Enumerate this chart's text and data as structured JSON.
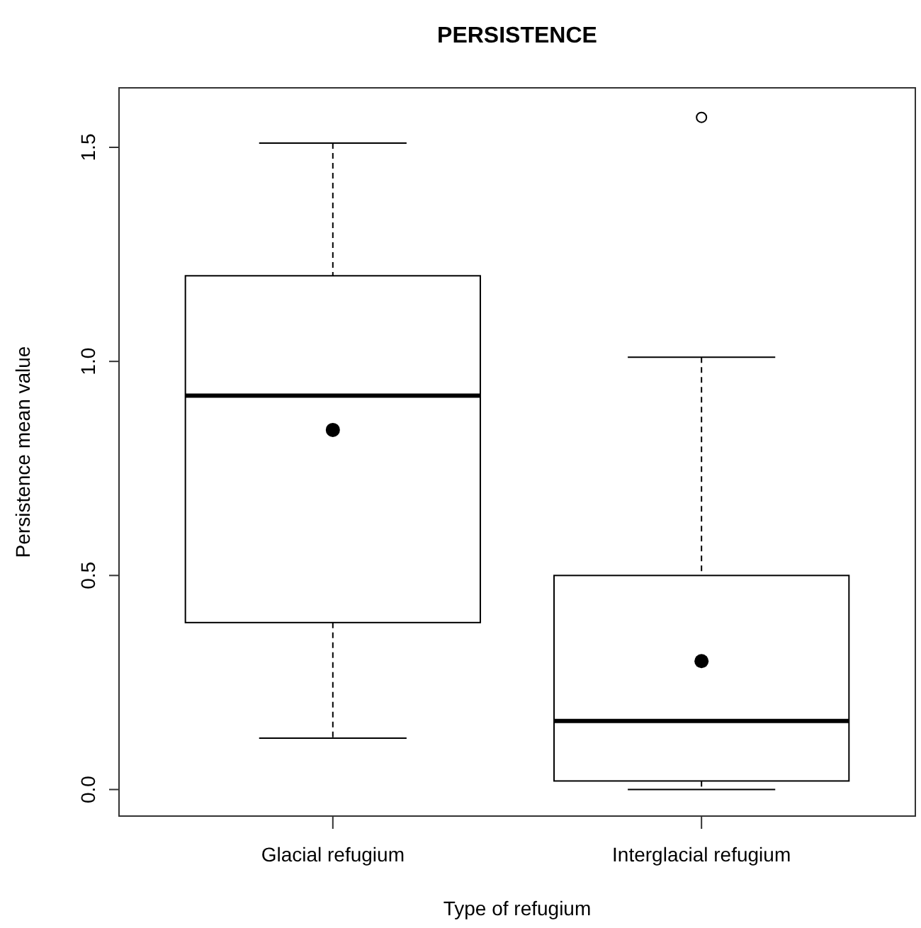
{
  "chart_data": {
    "type": "box",
    "title": "PERSISTENCE",
    "xlabel": "Type of refugium",
    "ylabel": "Persistence mean value",
    "categories": [
      "Glacial refugium",
      "Interglacial refugium"
    ],
    "boxes": [
      {
        "low": 0.12,
        "q1": 0.39,
        "median": 0.92,
        "q3": 1.2,
        "high": 1.51,
        "mean": 0.84
      },
      {
        "low": 0.0,
        "q1": 0.02,
        "median": 0.16,
        "q3": 0.5,
        "high": 1.01,
        "mean": 0.3,
        "outliers": [
          1.57
        ]
      }
    ],
    "ylim": [
      -0.062,
      1.639
    ],
    "yticks": [
      {
        "value": 0,
        "label": "0.0"
      },
      {
        "value": 0.5,
        "label": "0.5"
      },
      {
        "value": 1,
        "label": "1.0"
      },
      {
        "value": 1.5,
        "label": "1.5"
      }
    ],
    "grid": false
  }
}
